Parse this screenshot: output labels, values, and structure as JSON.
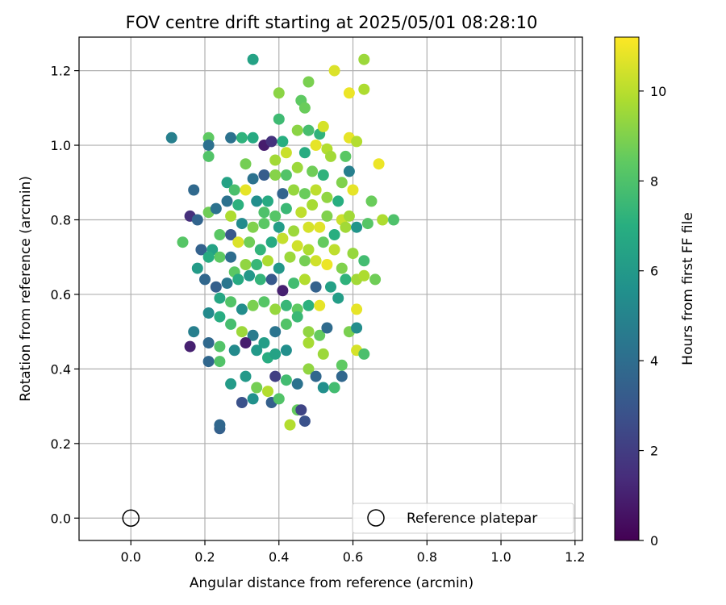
{
  "chart_data": {
    "type": "scatter",
    "title": "FOV centre drift starting at 2025/05/01 08:28:10",
    "xlabel": "Angular distance from reference (arcmin)",
    "ylabel": "Rotation from reference (arcmin)",
    "xlim": [
      -0.14,
      1.22
    ],
    "ylim": [
      -0.06,
      1.29
    ],
    "xticks": [
      0.0,
      0.2,
      0.4,
      0.6,
      0.8,
      1.0,
      1.2
    ],
    "yticks": [
      0.0,
      0.2,
      0.4,
      0.6,
      0.8,
      1.0,
      1.2
    ],
    "grid": true,
    "colormap": "viridis",
    "colorbar": {
      "label": "Hours from first FF file",
      "range": [
        0,
        11.2
      ],
      "ticks": [
        0,
        2,
        4,
        6,
        8,
        10
      ]
    },
    "legend": {
      "location": "lower right",
      "entries": [
        "Reference platepar"
      ]
    },
    "reference_point": {
      "x": 0.0,
      "y": 0.0,
      "marker": "open-circle"
    },
    "series": [
      {
        "points": [
          [
            0.33,
            1.23,
            6.4
          ],
          [
            0.63,
            1.23,
            9.5
          ],
          [
            0.55,
            1.2,
            10.6
          ],
          [
            0.48,
            1.17,
            8.9
          ],
          [
            0.4,
            1.14,
            9.2
          ],
          [
            0.59,
            1.14,
            10.9
          ],
          [
            0.63,
            1.15,
            9.8
          ],
          [
            0.46,
            1.12,
            8.4
          ],
          [
            0.47,
            1.1,
            8.6
          ],
          [
            0.11,
            1.02,
            4.8
          ],
          [
            0.21,
            1.02,
            8.4
          ],
          [
            0.27,
            1.02,
            4.2
          ],
          [
            0.3,
            1.02,
            7.2
          ],
          [
            0.33,
            1.02,
            6.8
          ],
          [
            0.36,
            1.0,
            0.9
          ],
          [
            0.38,
            1.01,
            1.6
          ],
          [
            0.41,
            1.01,
            7.0
          ],
          [
            0.4,
            1.07,
            7.6
          ],
          [
            0.45,
            1.04,
            9.2
          ],
          [
            0.48,
            1.04,
            7.8
          ],
          [
            0.51,
            1.03,
            7.2
          ],
          [
            0.52,
            1.05,
            10.5
          ],
          [
            0.59,
            1.02,
            10.8
          ],
          [
            0.61,
            1.01,
            9.9
          ],
          [
            0.21,
            1.0,
            4.1
          ],
          [
            0.5,
            1.0,
            10.8
          ],
          [
            0.53,
            0.99,
            9.9
          ],
          [
            0.21,
            0.97,
            8.1
          ],
          [
            0.31,
            0.95,
            8.8
          ],
          [
            0.39,
            0.96,
            9.6
          ],
          [
            0.42,
            0.98,
            10.3
          ],
          [
            0.47,
            0.98,
            6.9
          ],
          [
            0.54,
            0.97,
            9.6
          ],
          [
            0.58,
            0.97,
            8.3
          ],
          [
            0.33,
            0.91,
            4.2
          ],
          [
            0.36,
            0.92,
            3.3
          ],
          [
            0.39,
            0.92,
            9.1
          ],
          [
            0.42,
            0.92,
            8.1
          ],
          [
            0.45,
            0.94,
            9.5
          ],
          [
            0.49,
            0.93,
            8.7
          ],
          [
            0.52,
            0.92,
            7.2
          ],
          [
            0.57,
            0.9,
            9.0
          ],
          [
            0.59,
            0.93,
            4.8
          ],
          [
            0.67,
            0.95,
            10.9
          ],
          [
            0.17,
            0.88,
            3.8
          ],
          [
            0.26,
            0.9,
            6.4
          ],
          [
            0.28,
            0.88,
            7.9
          ],
          [
            0.31,
            0.88,
            10.8
          ],
          [
            0.34,
            0.85,
            5.5
          ],
          [
            0.37,
            0.85,
            6.8
          ],
          [
            0.41,
            0.87,
            3.6
          ],
          [
            0.44,
            0.88,
            9.4
          ],
          [
            0.47,
            0.87,
            8.6
          ],
          [
            0.5,
            0.88,
            10.1
          ],
          [
            0.53,
            0.86,
            9.3
          ],
          [
            0.56,
            0.85,
            7.0
          ],
          [
            0.6,
            0.88,
            10.8
          ],
          [
            0.65,
            0.85,
            8.6
          ],
          [
            0.26,
            0.85,
            4.2
          ],
          [
            0.29,
            0.84,
            7.1
          ],
          [
            0.36,
            0.82,
            8.0
          ],
          [
            0.39,
            0.81,
            8.2
          ],
          [
            0.42,
            0.83,
            7.5
          ],
          [
            0.46,
            0.82,
            10.1
          ],
          [
            0.49,
            0.84,
            9.7
          ],
          [
            0.53,
            0.81,
            9.0
          ],
          [
            0.57,
            0.8,
            10.3
          ],
          [
            0.59,
            0.81,
            9.6
          ],
          [
            0.64,
            0.79,
            8.2
          ],
          [
            0.68,
            0.8,
            9.8
          ],
          [
            0.71,
            0.8,
            8.0
          ],
          [
            0.16,
            0.81,
            1.5
          ],
          [
            0.18,
            0.8,
            3.6
          ],
          [
            0.21,
            0.82,
            8.7
          ],
          [
            0.23,
            0.83,
            4.2
          ],
          [
            0.27,
            0.81,
            9.8
          ],
          [
            0.3,
            0.79,
            5.3
          ],
          [
            0.33,
            0.78,
            9.0
          ],
          [
            0.36,
            0.79,
            8.3
          ],
          [
            0.4,
            0.78,
            6.2
          ],
          [
            0.44,
            0.77,
            9.5
          ],
          [
            0.48,
            0.78,
            10.5
          ],
          [
            0.51,
            0.78,
            10.7
          ],
          [
            0.55,
            0.76,
            7.0
          ],
          [
            0.58,
            0.78,
            9.6
          ],
          [
            0.61,
            0.78,
            5.8
          ],
          [
            0.14,
            0.74,
            8.2
          ],
          [
            0.19,
            0.72,
            3.5
          ],
          [
            0.22,
            0.72,
            6.4
          ],
          [
            0.24,
            0.76,
            8.3
          ],
          [
            0.27,
            0.76,
            3.0
          ],
          [
            0.29,
            0.74,
            10.6
          ],
          [
            0.32,
            0.74,
            8.7
          ],
          [
            0.35,
            0.72,
            7.3
          ],
          [
            0.38,
            0.74,
            6.8
          ],
          [
            0.41,
            0.75,
            10.2
          ],
          [
            0.45,
            0.73,
            10.4
          ],
          [
            0.48,
            0.72,
            9.8
          ],
          [
            0.52,
            0.74,
            8.5
          ],
          [
            0.55,
            0.72,
            10.1
          ],
          [
            0.6,
            0.71,
            9.4
          ],
          [
            0.18,
            0.67,
            6.1
          ],
          [
            0.21,
            0.7,
            6.9
          ],
          [
            0.24,
            0.7,
            8.4
          ],
          [
            0.27,
            0.7,
            4.0
          ],
          [
            0.28,
            0.66,
            8.3
          ],
          [
            0.31,
            0.68,
            9.3
          ],
          [
            0.34,
            0.68,
            7.4
          ],
          [
            0.37,
            0.69,
            9.8
          ],
          [
            0.4,
            0.67,
            5.9
          ],
          [
            0.43,
            0.7,
            9.5
          ],
          [
            0.47,
            0.69,
            8.8
          ],
          [
            0.5,
            0.69,
            10.4
          ],
          [
            0.53,
            0.68,
            10.9
          ],
          [
            0.57,
            0.67,
            9.0
          ],
          [
            0.63,
            0.69,
            7.7
          ],
          [
            0.2,
            0.64,
            3.7
          ],
          [
            0.23,
            0.62,
            3.4
          ],
          [
            0.26,
            0.63,
            4.4
          ],
          [
            0.29,
            0.64,
            6.8
          ],
          [
            0.32,
            0.65,
            5.9
          ],
          [
            0.35,
            0.64,
            7.3
          ],
          [
            0.38,
            0.64,
            3.1
          ],
          [
            0.41,
            0.61,
            1.0
          ],
          [
            0.44,
            0.63,
            7.7
          ],
          [
            0.47,
            0.64,
            9.9
          ],
          [
            0.5,
            0.62,
            3.5
          ],
          [
            0.54,
            0.62,
            6.3
          ],
          [
            0.58,
            0.64,
            7.2
          ],
          [
            0.61,
            0.64,
            9.6
          ],
          [
            0.63,
            0.65,
            9.8
          ],
          [
            0.66,
            0.64,
            8.7
          ],
          [
            0.24,
            0.59,
            6.6
          ],
          [
            0.27,
            0.58,
            8.1
          ],
          [
            0.3,
            0.56,
            5.4
          ],
          [
            0.33,
            0.57,
            8.9
          ],
          [
            0.36,
            0.58,
            8.2
          ],
          [
            0.39,
            0.56,
            9.4
          ],
          [
            0.42,
            0.57,
            7.4
          ],
          [
            0.45,
            0.56,
            8.4
          ],
          [
            0.48,
            0.57,
            7.1
          ],
          [
            0.51,
            0.57,
            10.8
          ],
          [
            0.56,
            0.59,
            6.2
          ],
          [
            0.61,
            0.56,
            10.8
          ],
          [
            0.17,
            0.5,
            4.8
          ],
          [
            0.21,
            0.55,
            5.3
          ],
          [
            0.24,
            0.54,
            6.9
          ],
          [
            0.27,
            0.52,
            7.8
          ],
          [
            0.3,
            0.5,
            9.5
          ],
          [
            0.33,
            0.49,
            4.6
          ],
          [
            0.36,
            0.47,
            6.2
          ],
          [
            0.39,
            0.5,
            4.3
          ],
          [
            0.42,
            0.52,
            8.1
          ],
          [
            0.45,
            0.54,
            7.5
          ],
          [
            0.48,
            0.5,
            9.3
          ],
          [
            0.51,
            0.49,
            8.5
          ],
          [
            0.53,
            0.51,
            3.9
          ],
          [
            0.59,
            0.5,
            8.9
          ],
          [
            0.61,
            0.51,
            5.4
          ],
          [
            0.16,
            0.46,
            1.0
          ],
          [
            0.21,
            0.47,
            3.8
          ],
          [
            0.24,
            0.46,
            8.1
          ],
          [
            0.28,
            0.45,
            5.3
          ],
          [
            0.31,
            0.47,
            0.9
          ],
          [
            0.34,
            0.45,
            6.0
          ],
          [
            0.37,
            0.43,
            6.9
          ],
          [
            0.39,
            0.44,
            6.4
          ],
          [
            0.42,
            0.45,
            5.5
          ],
          [
            0.48,
            0.47,
            9.7
          ],
          [
            0.52,
            0.44,
            9.5
          ],
          [
            0.57,
            0.41,
            8.4
          ],
          [
            0.61,
            0.45,
            10.5
          ],
          [
            0.63,
            0.44,
            7.9
          ],
          [
            0.21,
            0.42,
            3.7
          ],
          [
            0.24,
            0.42,
            8.1
          ],
          [
            0.27,
            0.36,
            6.1
          ],
          [
            0.31,
            0.38,
            6.0
          ],
          [
            0.34,
            0.35,
            8.8
          ],
          [
            0.37,
            0.34,
            9.9
          ],
          [
            0.39,
            0.38,
            2.1
          ],
          [
            0.42,
            0.37,
            7.7
          ],
          [
            0.45,
            0.36,
            4.2
          ],
          [
            0.48,
            0.4,
            9.3
          ],
          [
            0.5,
            0.38,
            3.7
          ],
          [
            0.52,
            0.35,
            5.5
          ],
          [
            0.55,
            0.35,
            7.7
          ],
          [
            0.57,
            0.38,
            3.7
          ],
          [
            0.3,
            0.31,
            2.8
          ],
          [
            0.33,
            0.32,
            5.6
          ],
          [
            0.38,
            0.31,
            3.4
          ],
          [
            0.4,
            0.32,
            8.1
          ],
          [
            0.45,
            0.29,
            8.5
          ],
          [
            0.46,
            0.29,
            2.3
          ],
          [
            0.47,
            0.26,
            2.8
          ],
          [
            0.43,
            0.25,
            9.9
          ],
          [
            0.24,
            0.24,
            3.4
          ],
          [
            0.24,
            0.25,
            3.7
          ]
        ]
      }
    ]
  }
}
